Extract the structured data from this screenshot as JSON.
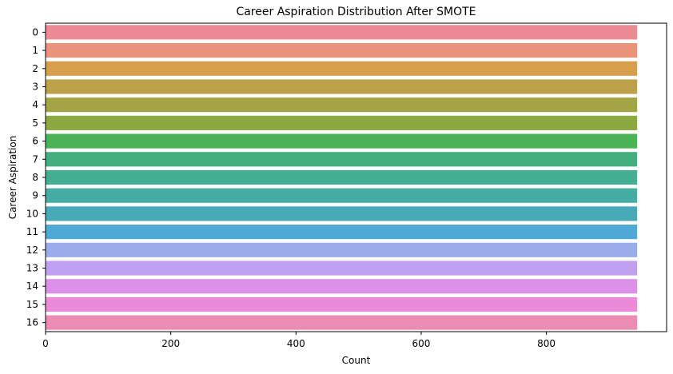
{
  "chart_data": {
    "type": "bar",
    "orientation": "horizontal",
    "title": "Career Aspiration Distribution After SMOTE",
    "xlabel": "Count",
    "ylabel": "Career Aspiration",
    "categories": [
      "0",
      "1",
      "2",
      "3",
      "4",
      "5",
      "6",
      "7",
      "8",
      "9",
      "10",
      "11",
      "12",
      "13",
      "14",
      "15",
      "16"
    ],
    "values": [
      945,
      945,
      945,
      945,
      945,
      945,
      945,
      945,
      945,
      945,
      945,
      945,
      945,
      945,
      945,
      945,
      945
    ],
    "xlim": [
      0,
      992
    ],
    "xticks": [
      0,
      200,
      400,
      600,
      800
    ],
    "xtick_labels": [
      "0",
      "200",
      "400",
      "600",
      "800"
    ],
    "grid": false,
    "colors": [
      "#ed8b95",
      "#e8937a",
      "#d69f4d",
      "#bca04a",
      "#a2a445",
      "#8ca840",
      "#4bb255",
      "#45ae7e",
      "#44ad92",
      "#46ada4",
      "#48aab7",
      "#4fa8d5",
      "#9aacea",
      "#c19ff1",
      "#dc91e9",
      "#eb8bd7",
      "#ec8cb5"
    ]
  }
}
